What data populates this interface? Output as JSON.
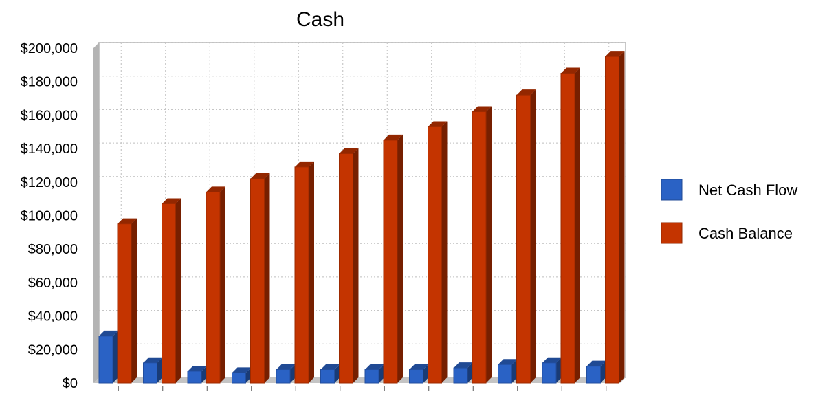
{
  "chart_data": {
    "type": "bar",
    "title": "Cash",
    "xlabel": "",
    "ylabel": "",
    "ylim": [
      0,
      200000
    ],
    "y_ticks": [
      "$0",
      "$20,000",
      "$40,000",
      "$60,000",
      "$80,000",
      "$100,000",
      "$120,000",
      "$140,000",
      "$160,000",
      "$180,000",
      "$200,000"
    ],
    "categories": [
      "",
      "",
      "",
      "",
      "",
      "",
      "",
      "",
      "",
      "",
      "",
      ""
    ],
    "series": [
      {
        "name": "Net Cash Flow",
        "color": "#2a62c5",
        "values": [
          28000,
          12000,
          7000,
          6000,
          8000,
          8000,
          8000,
          8000,
          9000,
          11000,
          12000,
          10000
        ]
      },
      {
        "name": "Cash Balance",
        "color": "#c43400",
        "values": [
          95000,
          107000,
          114000,
          122000,
          129000,
          137000,
          145000,
          153000,
          162000,
          172000,
          185000,
          195000
        ]
      }
    ],
    "grid": true,
    "legend_position": "right"
  }
}
